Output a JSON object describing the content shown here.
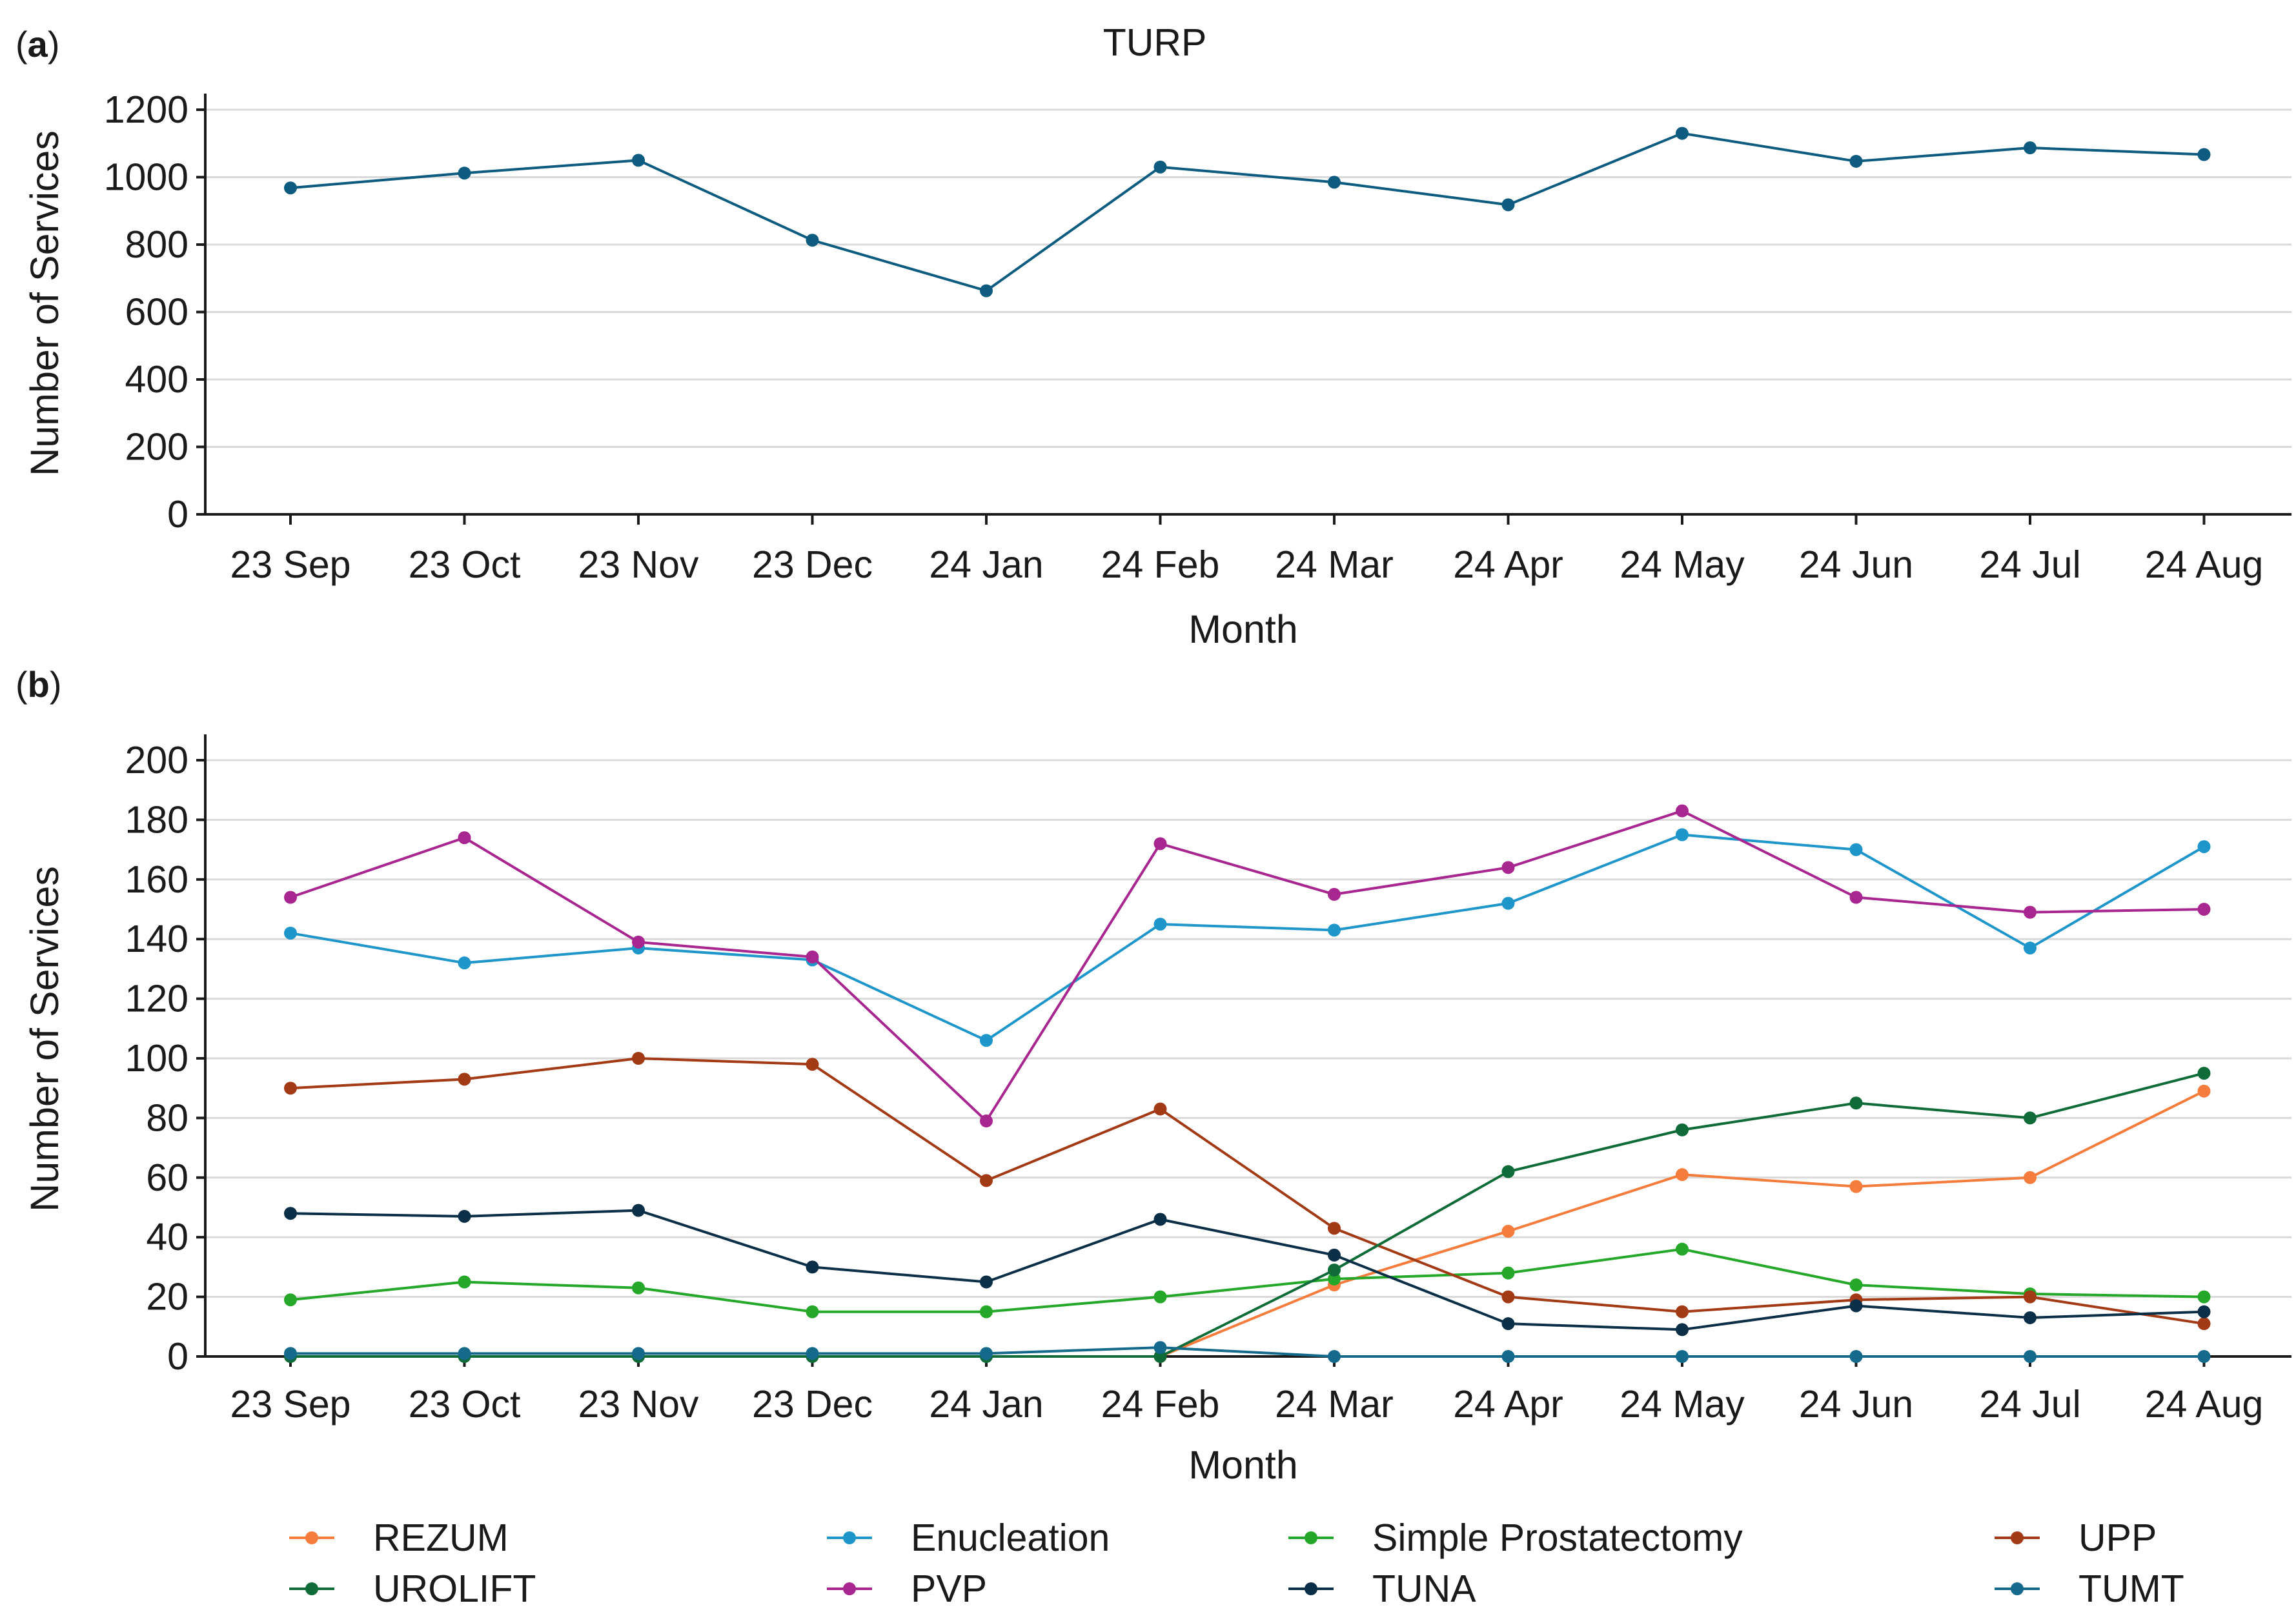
{
  "figure": {
    "panel_a_letter": "a",
    "panel_b_letter": "b"
  },
  "chart_data": [
    {
      "type": "line",
      "panel": "a",
      "title": "TURP",
      "xlabel": "Month",
      "ylabel": "Number of Services",
      "categories": [
        "23 Sep",
        "23 Oct",
        "23 Nov",
        "23 Dec",
        "24 Jan",
        "24 Feb",
        "24 Mar",
        "24 Apr",
        "24 May",
        "24 Jun",
        "24 Jul",
        "24 Aug"
      ],
      "ylim": [
        0,
        1200
      ],
      "yticks": [
        0,
        200,
        400,
        600,
        800,
        1000,
        1200
      ],
      "grid": true,
      "series": [
        {
          "name": "TURP",
          "color": "#0d5c80",
          "values": [
            968,
            1012,
            1050,
            813,
            663,
            1030,
            985,
            918,
            1130,
            1047,
            1087,
            1067
          ]
        }
      ]
    },
    {
      "type": "line",
      "panel": "b",
      "title": "",
      "xlabel": "Month",
      "ylabel": "Number of Services",
      "categories": [
        "23 Sep",
        "23 Oct",
        "23 Nov",
        "23 Dec",
        "24 Jan",
        "24 Feb",
        "24 Mar",
        "24 Apr",
        "24 May",
        "24 Jun",
        "24 Jul",
        "24 Aug"
      ],
      "ylim": [
        0,
        200
      ],
      "yticks": [
        0,
        20,
        40,
        60,
        80,
        100,
        120,
        140,
        160,
        180,
        200
      ],
      "grid": true,
      "legend_position": "bottom",
      "series": [
        {
          "name": "REZUM",
          "color": "#f47c3c",
          "values": [
            null,
            null,
            null,
            null,
            null,
            0,
            24,
            42,
            61,
            57,
            60,
            89
          ]
        },
        {
          "name": "Enucleation",
          "color": "#1f96c9",
          "values": [
            142,
            132,
            137,
            133,
            106,
            145,
            143,
            152,
            175,
            170,
            137,
            171
          ]
        },
        {
          "name": "Simple Prostatectomy",
          "color": "#25a829",
          "values": [
            19,
            25,
            23,
            15,
            15,
            20,
            26,
            28,
            36,
            24,
            21,
            20
          ]
        },
        {
          "name": "UPP",
          "color": "#a23b15",
          "values": [
            90,
            93,
            100,
            98,
            59,
            83,
            43,
            20,
            15,
            19,
            20,
            11
          ]
        },
        {
          "name": "UROLIFT",
          "color": "#0f6b38",
          "values": [
            0,
            0,
            0,
            0,
            0,
            0,
            29,
            62,
            76,
            85,
            80,
            95
          ]
        },
        {
          "name": "PVP",
          "color": "#a8268f",
          "values": [
            154,
            174,
            139,
            134,
            79,
            172,
            155,
            164,
            183,
            154,
            149,
            150
          ]
        },
        {
          "name": "TUNA",
          "color": "#0c2f48",
          "values": [
            48,
            47,
            49,
            30,
            25,
            46,
            34,
            11,
            9,
            17,
            13,
            15
          ]
        },
        {
          "name": "TUMT",
          "color": "#156a8c",
          "values": [
            1,
            1,
            1,
            1,
            1,
            3,
            0,
            0,
            0,
            0,
            0,
            0
          ]
        }
      ]
    }
  ]
}
